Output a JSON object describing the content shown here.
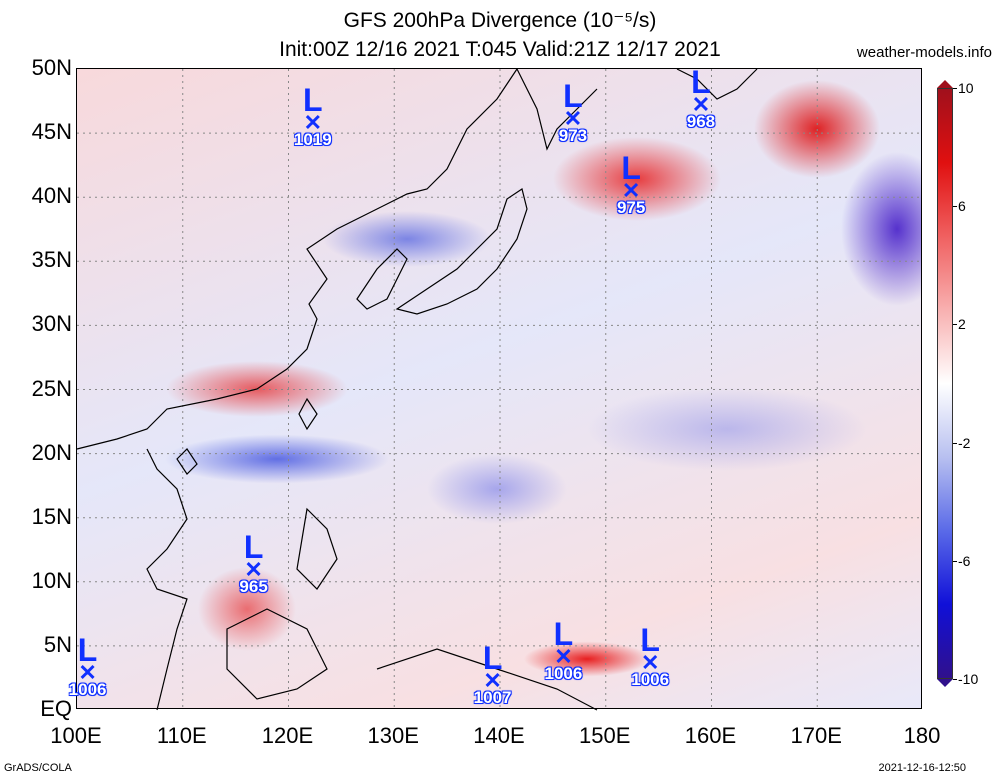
{
  "title_line1": "GFS 200hPa Divergence (10⁻⁵/s)",
  "title_line2": "Init:00Z 12/16 2021 T:045 Valid:21Z 12/17 2021",
  "site": "weather-models.info",
  "footer_left": "GrADS/COLA",
  "footer_right": "2021-12-16-12:50",
  "lat_labels": [
    "50N",
    "45N",
    "40N",
    "35N",
    "30N",
    "25N",
    "20N",
    "15N",
    "10N",
    "5N",
    "EQ"
  ],
  "lon_labels": [
    "100E",
    "110E",
    "120E",
    "130E",
    "140E",
    "150E",
    "160E",
    "170E",
    "180"
  ],
  "colorbar_labels": [
    "10",
    "6",
    "2",
    "-2",
    "-6",
    "-10"
  ],
  "colors": {
    "positive": "#e01010",
    "negative": "#1010d8",
    "low_marker": "#1030ff"
  },
  "lows": [
    {
      "symbol": "L",
      "pressure": "1019",
      "lon": 122.3,
      "lat": 45.8
    },
    {
      "symbol": "L",
      "pressure": "973",
      "lon": 146.9,
      "lat": 46.1
    },
    {
      "symbol": "L",
      "pressure": "968",
      "lon": 159.0,
      "lat": 47.2
    },
    {
      "symbol": "L",
      "pressure": "975",
      "lon": 152.4,
      "lat": 40.5
    },
    {
      "symbol": "L",
      "pressure": "965",
      "lon": 116.7,
      "lat": 10.9
    },
    {
      "symbol": "L",
      "pressure": "1006",
      "lon": 101.0,
      "lat": 2.9
    },
    {
      "symbol": "L",
      "pressure": "1007",
      "lon": 139.3,
      "lat": 2.3
    },
    {
      "symbol": "L",
      "pressure": "1006",
      "lon": 146.0,
      "lat": 4.1
    },
    {
      "symbol": "L",
      "pressure": "1006",
      "lon": 154.2,
      "lat": 3.7
    }
  ]
}
